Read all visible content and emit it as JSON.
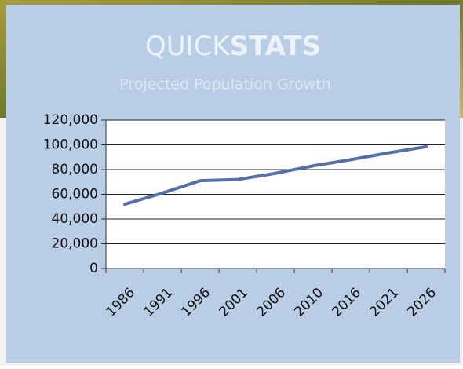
{
  "chart_data": {
    "type": "line",
    "title": [
      "QUICK",
      "STATS"
    ],
    "subtitle": "Projected Population Growth",
    "categories": [
      "1986",
      "1991",
      "1996",
      "2001",
      "2006",
      "2010",
      "2016",
      "2021",
      "2026"
    ],
    "values": [
      52000,
      61000,
      71000,
      72000,
      77000,
      83000,
      88000,
      93500,
      98500
    ],
    "color": "#5670a8",
    "ylim": [
      0,
      120000
    ],
    "yticks": [
      0,
      {
        "value": 20000,
        "label": "20,000"
      },
      {
        "value": 40000,
        "label": "40,000"
      },
      {
        "value": 60000,
        "label": "60,000"
      },
      {
        "value": 80000,
        "label": "80,000"
      },
      {
        "value": 100000,
        "label": "100,000"
      },
      {
        "value": 120000,
        "label": "120,000"
      }
    ],
    "grid": true
  }
}
